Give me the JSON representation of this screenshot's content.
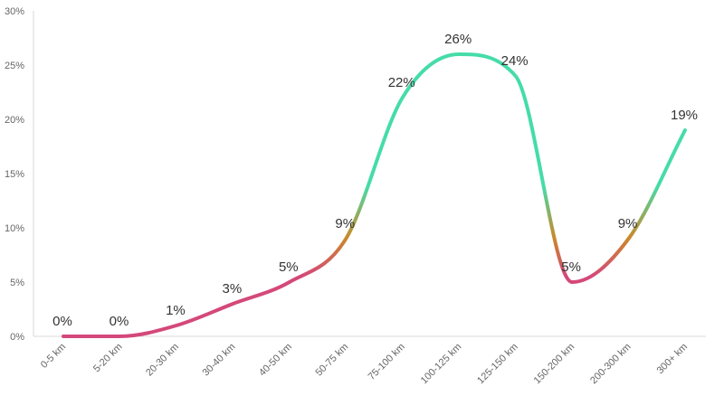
{
  "chart_data": {
    "type": "line",
    "categories": [
      "0-5 km",
      "5-20 km",
      "20-30 km",
      "30-40 km",
      "40-50 km",
      "50-75 km",
      "75-100 km",
      "100-125 km",
      "125-150 km",
      "150-200 km",
      "200-300 km",
      "300+ km"
    ],
    "values": [
      0,
      0,
      1,
      3,
      5,
      9,
      22,
      26,
      24,
      5,
      9,
      19
    ],
    "data_labels": [
      "0%",
      "0%",
      "1%",
      "3%",
      "5%",
      "9%",
      "22%",
      "26%",
      "24%",
      "5%",
      "9%",
      "19%"
    ],
    "yticks": [
      "0%",
      "5%",
      "10%",
      "15%",
      "20%",
      "25%",
      "30%"
    ],
    "ylim": [
      0,
      30
    ],
    "grid": false,
    "legend": "none",
    "colors": {
      "low": "#d4487a",
      "mid": "#c98a2a",
      "high": "#45dca8",
      "axis": "#d8d8d8",
      "tick_text": "#666666",
      "label_text": "#333333"
    }
  }
}
